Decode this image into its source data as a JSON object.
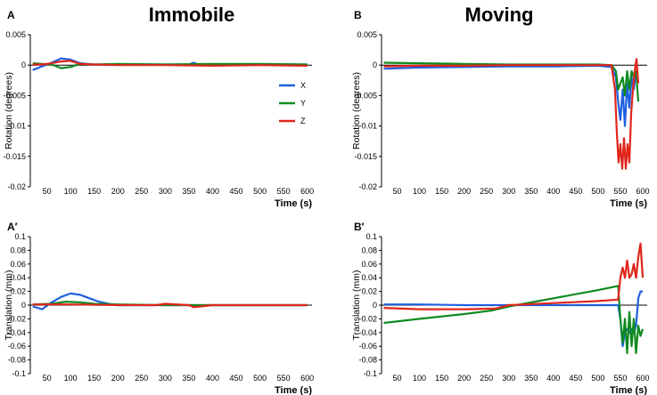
{
  "column_titles": [
    "Immobile",
    "Moving"
  ],
  "colors": {
    "X": "#1f5fe0",
    "Y": "#0f8a1f",
    "Z": "#e0261b",
    "axis": "#000000"
  },
  "legend": [
    "X",
    "Y",
    "Z"
  ],
  "chart_data": [
    {
      "panel": "A",
      "type": "line",
      "title": "Immobile",
      "xlabel": "Time (s)",
      "ylabel": "Rotation (degrees)",
      "xlim": [
        15,
        610
      ],
      "ylim": [
        -0.02,
        0.005
      ],
      "xticks": [
        50,
        100,
        150,
        200,
        250,
        300,
        350,
        400,
        450,
        500,
        550,
        600
      ],
      "yticks": [
        0.005,
        0,
        -0.005,
        -0.01,
        -0.015,
        -0.02
      ],
      "ytick_labels": [
        "0.005",
        "0",
        "-0.005",
        "-0.01",
        "-0.015",
        "-0.02"
      ],
      "series": [
        {
          "name": "X",
          "x": [
            20,
            40,
            60,
            80,
            100,
            120,
            150,
            200,
            300,
            350,
            360,
            370,
            400,
            500,
            600
          ],
          "y": [
            -0.0008,
            -0.0002,
            0.0004,
            0.0011,
            0.0009,
            0.0003,
            0.0001,
            0.0001,
            0.0001,
            0.0001,
            0.0004,
            0.0001,
            0.0001,
            0.0001,
            0.0001
          ]
        },
        {
          "name": "Y",
          "x": [
            20,
            40,
            60,
            80,
            100,
            120,
            150,
            200,
            300,
            400,
            500,
            600
          ],
          "y": [
            0.0003,
            0.0002,
            0.0001,
            -0.0005,
            -0.0003,
            0.0002,
            0.0001,
            0.0002,
            0.0001,
            0.0002,
            0.0002,
            0.0001
          ]
        },
        {
          "name": "Z",
          "x": [
            20,
            40,
            60,
            80,
            100,
            120,
            150,
            200,
            300,
            400,
            500,
            600
          ],
          "y": [
            0.0001,
            0.0001,
            0.0003,
            0.0006,
            0.0007,
            0.0002,
            0.0001,
            0.0,
            0.0,
            -0.0001,
            0.0,
            -0.0001
          ]
        }
      ]
    },
    {
      "panel": "B",
      "type": "line",
      "title": "Moving",
      "xlabel": "Time (s)",
      "ylabel": "Rotation (degrees)",
      "xlim": [
        15,
        610
      ],
      "ylim": [
        -0.02,
        0.005
      ],
      "xticks": [
        50,
        100,
        150,
        200,
        250,
        300,
        350,
        400,
        450,
        500,
        550,
        600
      ],
      "yticks": [
        0.005,
        0,
        -0.005,
        -0.01,
        -0.015,
        -0.02
      ],
      "ytick_labels": [
        "0.005",
        "0",
        "-0.005",
        "-0.01",
        "-0.015",
        "-0.02"
      ],
      "series": [
        {
          "name": "X",
          "x": [
            20,
            100,
            200,
            300,
            400,
            500,
            530,
            540,
            545,
            550,
            555,
            560,
            565,
            570,
            575,
            580,
            585,
            590
          ],
          "y": [
            -0.0006,
            -0.0004,
            -0.0003,
            -0.0002,
            -0.0002,
            -0.0001,
            -0.0003,
            -0.002,
            -0.006,
            -0.009,
            -0.004,
            -0.01,
            -0.003,
            -0.007,
            -0.002,
            -0.004,
            -0.001,
            -0.003
          ]
        },
        {
          "name": "Y",
          "x": [
            20,
            100,
            200,
            300,
            400,
            500,
            530,
            540,
            545,
            550,
            555,
            560,
            565,
            570,
            575,
            580,
            585,
            590
          ],
          "y": [
            0.0004,
            0.0003,
            0.0002,
            0.0001,
            0.0001,
            0.0001,
            0.0,
            -0.001,
            -0.004,
            -0.003,
            -0.002,
            -0.005,
            -0.001,
            -0.004,
            -0.001,
            -0.002,
            -0.001,
            -0.006
          ]
        },
        {
          "name": "Z",
          "x": [
            20,
            100,
            200,
            300,
            400,
            500,
            530,
            538,
            542,
            546,
            550,
            554,
            558,
            562,
            566,
            570,
            574,
            578,
            582,
            586,
            590
          ],
          "y": [
            -0.0002,
            -0.0001,
            -0.0001,
            0.0,
            0.0,
            0.0,
            0.0,
            -0.004,
            -0.011,
            -0.016,
            -0.013,
            -0.017,
            -0.012,
            -0.017,
            -0.013,
            -0.016,
            -0.008,
            -0.004,
            -0.001,
            0.001,
            -0.003
          ]
        }
      ]
    },
    {
      "panel": "A′",
      "type": "line",
      "xlabel": "Time (s)",
      "ylabel": "Translation (mm)",
      "xlim": [
        15,
        610
      ],
      "ylim": [
        -0.1,
        0.1
      ],
      "xticks": [
        50,
        100,
        150,
        200,
        250,
        300,
        350,
        400,
        450,
        500,
        550,
        600
      ],
      "yticks": [
        0.1,
        0.08,
        0.06,
        0.04,
        0.02,
        0,
        -0.02,
        -0.04,
        -0.06,
        -0.08,
        -0.1
      ],
      "ytick_labels": [
        "0.1",
        "0.08",
        "0.06",
        "0.04",
        "0.02",
        "0",
        "-0.02",
        "-0.04",
        "-0.06",
        "-0.08",
        "-0.1"
      ],
      "series": [
        {
          "name": "X",
          "x": [
            20,
            40,
            60,
            80,
            100,
            120,
            140,
            160,
            180,
            200,
            300,
            400,
            500,
            600
          ],
          "y": [
            -0.002,
            -0.006,
            0.004,
            0.012,
            0.017,
            0.015,
            0.01,
            0.005,
            0.002,
            0.0,
            0.0,
            0.0,
            0.0,
            0.0
          ]
        },
        {
          "name": "Y",
          "x": [
            20,
            60,
            90,
            120,
            150,
            200,
            300,
            400,
            500,
            600
          ],
          "y": [
            0.001,
            0.002,
            0.005,
            0.004,
            0.002,
            0.001,
            0.0,
            0.0,
            0.0,
            0.0
          ]
        },
        {
          "name": "Z",
          "x": [
            20,
            100,
            200,
            280,
            300,
            350,
            360,
            400,
            500,
            600
          ],
          "y": [
            0.001,
            0.001,
            0.0,
            0.0,
            0.002,
            0.0,
            -0.003,
            0.0,
            0.0,
            0.0
          ]
        }
      ]
    },
    {
      "panel": "B′",
      "type": "line",
      "xlabel": "Time (s)",
      "ylabel": "Translation (mm)",
      "xlim": [
        15,
        610
      ],
      "ylim": [
        -0.1,
        0.1
      ],
      "xticks": [
        50,
        100,
        150,
        200,
        250,
        300,
        350,
        400,
        450,
        500,
        550,
        600
      ],
      "yticks": [
        0.1,
        0.08,
        0.06,
        0.04,
        0.02,
        0,
        -0.02,
        -0.04,
        -0.06,
        -0.08,
        -0.1
      ],
      "ytick_labels": [
        "0.1",
        "0.08",
        "0.06",
        "0.04",
        "0.02",
        "0",
        "-0.02",
        "-0.04",
        "-0.06",
        "-0.08",
        "-0.1"
      ],
      "series": [
        {
          "name": "X",
          "x": [
            20,
            100,
            200,
            300,
            400,
            500,
            545,
            550,
            555,
            560,
            565,
            570,
            575,
            580,
            585,
            590,
            595,
            600
          ],
          "y": [
            0.001,
            0.001,
            0.0,
            0.0,
            0.0,
            0.0,
            0.0,
            -0.02,
            -0.06,
            -0.04,
            -0.035,
            -0.04,
            -0.035,
            -0.04,
            -0.03,
            0.01,
            0.02,
            0.02
          ]
        },
        {
          "name": "Y",
          "x": [
            20,
            100,
            200,
            260,
            300,
            400,
            500,
            545,
            550,
            555,
            560,
            565,
            570,
            575,
            580,
            585,
            590,
            595,
            600
          ],
          "y": [
            -0.026,
            -0.02,
            -0.013,
            -0.008,
            -0.002,
            0.01,
            0.022,
            0.028,
            -0.02,
            -0.055,
            -0.02,
            -0.07,
            -0.01,
            -0.06,
            -0.02,
            -0.07,
            -0.03,
            -0.045,
            -0.035
          ]
        },
        {
          "name": "Z",
          "x": [
            20,
            100,
            200,
            270,
            300,
            400,
            500,
            545,
            550,
            555,
            560,
            565,
            570,
            575,
            580,
            585,
            590,
            595,
            600
          ],
          "y": [
            -0.004,
            -0.006,
            -0.006,
            -0.005,
            0.0,
            0.003,
            0.006,
            0.008,
            0.04,
            0.055,
            0.04,
            0.065,
            0.04,
            0.045,
            0.06,
            0.04,
            0.07,
            0.09,
            0.04
          ]
        }
      ]
    }
  ]
}
